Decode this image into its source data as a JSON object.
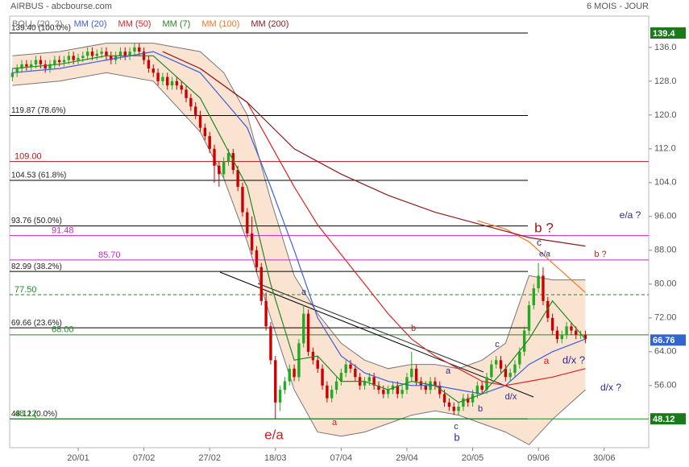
{
  "chart_data": {
    "type": "candlestick",
    "title": "AIRBUS - abcbourse.com",
    "subtitle": "6 MOIS - JOUR",
    "up_color": "#22aa22",
    "down_color": "#cc0000",
    "xlim": [
      0,
      136
    ],
    "ylim": [
      41.3,
      143.4
    ],
    "xticks": [
      {
        "value": 14,
        "label": "20/01"
      },
      {
        "value": 28,
        "label": "07/02"
      },
      {
        "value": 42,
        "label": "27/02"
      },
      {
        "value": 56,
        "label": "18/03"
      },
      {
        "value": 70,
        "label": "07/04"
      },
      {
        "value": 84,
        "label": "29/04"
      },
      {
        "value": 98,
        "label": "20/05"
      },
      {
        "value": 112,
        "label": "09/06"
      },
      {
        "value": 126,
        "label": "30/06"
      }
    ],
    "yticks": [
      {
        "value": 136,
        "label": "136.0"
      },
      {
        "value": 128,
        "label": "128.0"
      },
      {
        "value": 120,
        "label": "120.0"
      },
      {
        "value": 112,
        "label": "112.0"
      },
      {
        "value": 104,
        "label": "104.0"
      },
      {
        "value": 96,
        "label": "96.00"
      },
      {
        "value": 88,
        "label": "88.00"
      },
      {
        "value": 80,
        "label": "80.00"
      },
      {
        "value": 72,
        "label": "72.00"
      },
      {
        "value": 64,
        "label": "64.00"
      },
      {
        "value": 56,
        "label": "56.00"
      }
    ],
    "ohlc": [
      [
        129,
        131,
        128,
        130
      ],
      [
        130,
        132,
        129,
        131
      ],
      [
        131,
        133,
        130,
        132
      ],
      [
        132,
        133,
        130.5,
        131.5
      ],
      [
        131.5,
        133,
        130.5,
        132
      ],
      [
        132,
        134,
        131,
        133
      ],
      [
        133,
        134,
        131,
        132
      ],
      [
        132,
        133,
        130,
        131
      ],
      [
        131,
        133,
        130,
        132
      ],
      [
        132,
        134,
        131,
        133
      ],
      [
        133,
        134,
        131.5,
        132.5
      ],
      [
        132.5,
        134,
        131.5,
        133
      ],
      [
        133,
        135,
        132,
        134
      ],
      [
        134,
        135,
        132,
        133
      ],
      [
        133,
        134.5,
        132,
        133.5
      ],
      [
        133.5,
        135,
        132.5,
        134
      ],
      [
        134,
        136,
        133,
        135
      ],
      [
        135,
        136,
        133,
        134
      ],
      [
        134,
        135.5,
        133,
        134.5
      ],
      [
        134.5,
        136,
        133.5,
        135
      ],
      [
        135,
        136,
        133,
        134
      ],
      [
        134,
        135,
        132,
        133
      ],
      [
        133,
        135,
        132,
        134
      ],
      [
        134,
        136,
        133,
        135
      ],
      [
        135,
        136,
        133,
        134
      ],
      [
        134,
        136,
        133,
        135
      ],
      [
        135,
        137,
        134,
        136
      ],
      [
        136,
        137,
        134,
        135
      ],
      [
        135,
        136,
        132,
        133
      ],
      [
        133,
        134,
        130,
        131
      ],
      [
        131,
        132,
        129,
        130
      ],
      [
        130,
        131,
        127,
        128
      ],
      [
        128,
        130,
        127,
        129
      ],
      [
        129,
        130,
        126,
        127
      ],
      [
        127,
        129,
        126,
        128
      ],
      [
        128,
        129,
        126,
        127
      ],
      [
        127,
        128,
        125,
        126
      ],
      [
        126,
        127,
        123,
        124
      ],
      [
        124,
        125,
        121,
        122
      ],
      [
        122,
        123,
        119,
        120
      ],
      [
        120,
        121,
        116,
        117
      ],
      [
        117,
        118,
        114,
        115
      ],
      [
        115,
        116,
        111,
        112
      ],
      [
        112,
        113,
        104,
        108
      ],
      [
        108,
        109,
        103,
        106
      ],
      [
        106,
        110,
        105,
        109
      ],
      [
        109,
        112,
        108,
        111
      ],
      [
        111,
        112,
        106,
        107
      ],
      [
        107,
        108,
        102,
        103
      ],
      [
        103,
        104,
        96,
        97
      ],
      [
        97,
        98,
        91,
        92
      ],
      [
        92,
        96,
        87,
        88
      ],
      [
        88,
        89,
        83,
        84
      ],
      [
        84,
        85,
        75,
        76
      ],
      [
        76,
        78,
        69,
        70
      ],
      [
        70,
        71,
        61,
        62
      ],
      [
        62,
        63,
        48.1,
        52
      ],
      [
        52,
        56,
        50,
        55
      ],
      [
        55,
        58,
        54,
        57
      ],
      [
        57,
        61,
        56,
        60
      ],
      [
        60,
        61,
        57,
        58
      ],
      [
        58,
        67,
        57,
        66
      ],
      [
        66,
        75,
        65,
        73
      ],
      [
        73,
        74,
        63,
        64
      ],
      [
        64,
        65,
        61,
        62
      ],
      [
        62,
        63,
        59,
        60
      ],
      [
        60,
        61,
        55,
        56
      ],
      [
        56,
        57,
        52,
        53
      ],
      [
        53,
        56,
        52,
        55
      ],
      [
        55,
        58,
        54,
        57
      ],
      [
        57,
        60,
        56,
        59
      ],
      [
        59,
        62,
        58,
        61
      ],
      [
        61,
        62,
        59,
        60
      ],
      [
        60,
        61,
        57,
        58
      ],
      [
        58,
        59,
        55,
        56
      ],
      [
        56,
        58,
        55,
        57
      ],
      [
        57,
        59,
        56,
        58
      ],
      [
        58,
        59,
        55,
        56
      ],
      [
        56,
        57,
        54,
        55
      ],
      [
        55,
        56,
        53,
        54
      ],
      [
        54,
        56,
        53,
        55
      ],
      [
        55,
        57,
        54,
        56
      ],
      [
        56,
        57,
        53,
        54
      ],
      [
        54,
        56,
        53,
        55
      ],
      [
        55,
        59,
        54,
        58
      ],
      [
        58,
        64,
        57,
        60
      ],
      [
        60,
        61,
        56,
        57
      ],
      [
        57,
        58,
        55,
        56
      ],
      [
        56,
        57,
        54,
        55
      ],
      [
        55,
        58,
        54,
        57
      ],
      [
        57,
        58,
        55,
        56
      ],
      [
        56,
        57,
        53,
        54
      ],
      [
        54,
        55,
        51,
        52
      ],
      [
        52,
        53,
        50,
        51
      ],
      [
        51,
        52,
        49,
        50
      ],
      [
        50,
        52,
        49,
        51
      ],
      [
        51,
        54,
        50,
        53
      ],
      [
        53,
        54,
        51,
        52
      ],
      [
        52,
        55,
        51,
        54
      ],
      [
        54,
        57,
        53,
        56
      ],
      [
        56,
        57,
        54,
        55
      ],
      [
        55,
        59,
        54,
        58
      ],
      [
        58,
        62,
        57,
        61
      ],
      [
        61,
        63,
        60,
        62
      ],
      [
        62,
        63,
        59,
        60
      ],
      [
        60,
        61,
        57,
        58
      ],
      [
        58,
        60,
        57,
        59
      ],
      [
        59,
        62,
        58,
        61
      ],
      [
        61,
        65,
        60,
        64
      ],
      [
        64,
        70,
        63,
        69
      ],
      [
        69,
        76,
        68,
        75
      ],
      [
        75,
        80,
        74,
        79
      ],
      [
        79,
        85,
        78,
        82
      ],
      [
        82,
        84,
        75,
        76
      ],
      [
        76,
        77,
        71,
        72
      ],
      [
        72,
        73,
        68,
        69
      ],
      [
        69,
        70,
        66,
        67
      ],
      [
        67,
        69,
        66,
        68
      ],
      [
        68,
        71,
        67,
        70
      ],
      [
        70,
        71,
        68,
        69
      ],
      [
        69,
        70,
        67,
        68
      ],
      [
        68,
        69,
        67,
        68
      ],
      [
        68,
        69,
        66,
        67
      ]
    ],
    "bollinger": {
      "name": "BOLL (20, 2)",
      "color": "#777777",
      "fill": "#fbe3d2",
      "x": [
        0,
        10,
        20,
        30,
        40,
        45,
        50,
        55,
        60,
        65,
        70,
        75,
        80,
        85,
        90,
        95,
        100,
        105,
        110,
        115,
        122
      ],
      "upper": [
        134,
        135,
        137,
        137,
        135,
        130,
        120,
        100,
        82,
        73,
        66,
        62,
        60,
        61,
        61,
        60,
        62,
        66,
        82,
        81,
        81
      ],
      "lower": [
        127,
        128,
        130,
        128,
        116,
        105,
        90,
        72,
        55,
        45,
        44,
        45,
        47,
        49,
        50,
        49,
        47,
        45,
        42,
        48,
        55
      ]
    },
    "series": [
      {
        "name": "MM (20)",
        "color": "#3b5fd9",
        "x": [
          0,
          10,
          20,
          30,
          40,
          50,
          55,
          60,
          65,
          70,
          75,
          80,
          85,
          90,
          95,
          100,
          105,
          110,
          115,
          122
        ],
        "values": [
          130,
          131,
          133,
          135,
          130,
          117,
          103,
          88,
          72,
          63,
          59,
          57,
          56,
          56,
          55,
          54,
          56,
          61,
          64,
          67
        ]
      },
      {
        "name": "MM (50)",
        "color": "#dd2222",
        "x": [
          40,
          50,
          55,
          60,
          65,
          70,
          75,
          80,
          85,
          90,
          95,
          100,
          105,
          110,
          115,
          122
        ],
        "values": [
          131,
          123,
          113,
          103,
          94,
          87,
          80,
          73,
          67,
          63,
          60,
          57,
          56,
          57,
          58,
          60
        ]
      },
      {
        "name": "MM (7)",
        "color": "#228822",
        "x": [
          0,
          10,
          20,
          30,
          40,
          50,
          55,
          60,
          65,
          70,
          75,
          80,
          85,
          90,
          95,
          100,
          105,
          110,
          115,
          122
        ],
        "values": [
          131,
          132,
          134,
          134,
          124,
          103,
          80,
          62,
          63,
          57,
          57,
          55,
          57,
          56,
          52,
          54,
          60,
          67,
          76,
          67
        ]
      },
      {
        "name": "MM (100)",
        "color": "#f07820",
        "x": [
          99,
          105,
          110,
          115,
          122
        ],
        "values": [
          95,
          93,
          90,
          85,
          78
        ]
      },
      {
        "name": "MM (200)",
        "color": "#8b1a1a",
        "x": [
          32,
          40,
          50,
          60,
          70,
          80,
          90,
          100,
          110,
          122
        ],
        "values": [
          135,
          131,
          123,
          112,
          106,
          101,
          97,
          94,
          91,
          89
        ]
      }
    ],
    "fibonacci_levels": [
      {
        "value": 139.4,
        "label": "139.40 (100.0%)"
      },
      {
        "value": 119.87,
        "label": "119.87  (78.6%)"
      },
      {
        "value": 104.53,
        "label": "104.53  (61.8%)"
      },
      {
        "value": 93.76,
        "label": "93.76  (50.0%)"
      },
      {
        "value": 82.99,
        "label": "82.99  (38.2%)"
      },
      {
        "value": 69.66,
        "label": "69.66  (23.6%)"
      },
      {
        "value": 48.12,
        "label": "48.12  (0.0%)"
      }
    ],
    "price_levels": [
      {
        "value": 109,
        "label": "109.00",
        "color": "#b01818",
        "dashed": false
      },
      {
        "value": 91.48,
        "label": "91.48",
        "color": "#cc22cc",
        "dashed": false
      },
      {
        "value": 85.7,
        "label": "85.70",
        "color": "#cc22cc",
        "dashed": false
      },
      {
        "value": 77.5,
        "label": "77.50",
        "color": "#228822",
        "dashed": true
      },
      {
        "value": 68,
        "label": "68.00",
        "color": "#228822",
        "dashed": false
      },
      {
        "value": 48.12,
        "label": "48.12",
        "color": "#228822",
        "dashed": false
      }
    ],
    "price_tags": [
      {
        "value": 139.4,
        "color": "#1a7a1a"
      },
      {
        "value": 66.76,
        "color": "#3366cc"
      },
      {
        "value": 48.12,
        "color": "#1a7a1a"
      }
    ],
    "annotations": [
      {
        "text": "a",
        "color": "#2a2a9a"
      },
      {
        "text": "b",
        "color": "#cc2222"
      },
      {
        "text": "c",
        "color": "#2a2a9a"
      },
      {
        "text": "a",
        "color": "#cc2222"
      },
      {
        "text": "e/a",
        "color": "#cc2222"
      },
      {
        "text": "c",
        "color": "#2a2a9a"
      },
      {
        "text": "b",
        "color": "#2a2a9a"
      },
      {
        "text": "a",
        "color": "#2a2a9a"
      },
      {
        "text": "b",
        "color": "#2a2a9a"
      },
      {
        "text": "d/x",
        "color": "#2a2a9a"
      },
      {
        "text": "b ?",
        "color": "#aa1111"
      },
      {
        "text": "c",
        "color": "#2a2a9a"
      },
      {
        "text": "e/a",
        "color": "#2a2a9a"
      },
      {
        "text": "b ?",
        "color": "#cc2222"
      },
      {
        "text": "e/a ?",
        "color": "#2a2a9a"
      },
      {
        "text": "a",
        "color": "#cc2222"
      },
      {
        "text": "d/x ?",
        "color": "#2a2a9a"
      },
      {
        "text": "d/x ?",
        "color": "#2a2a9a"
      }
    ]
  }
}
